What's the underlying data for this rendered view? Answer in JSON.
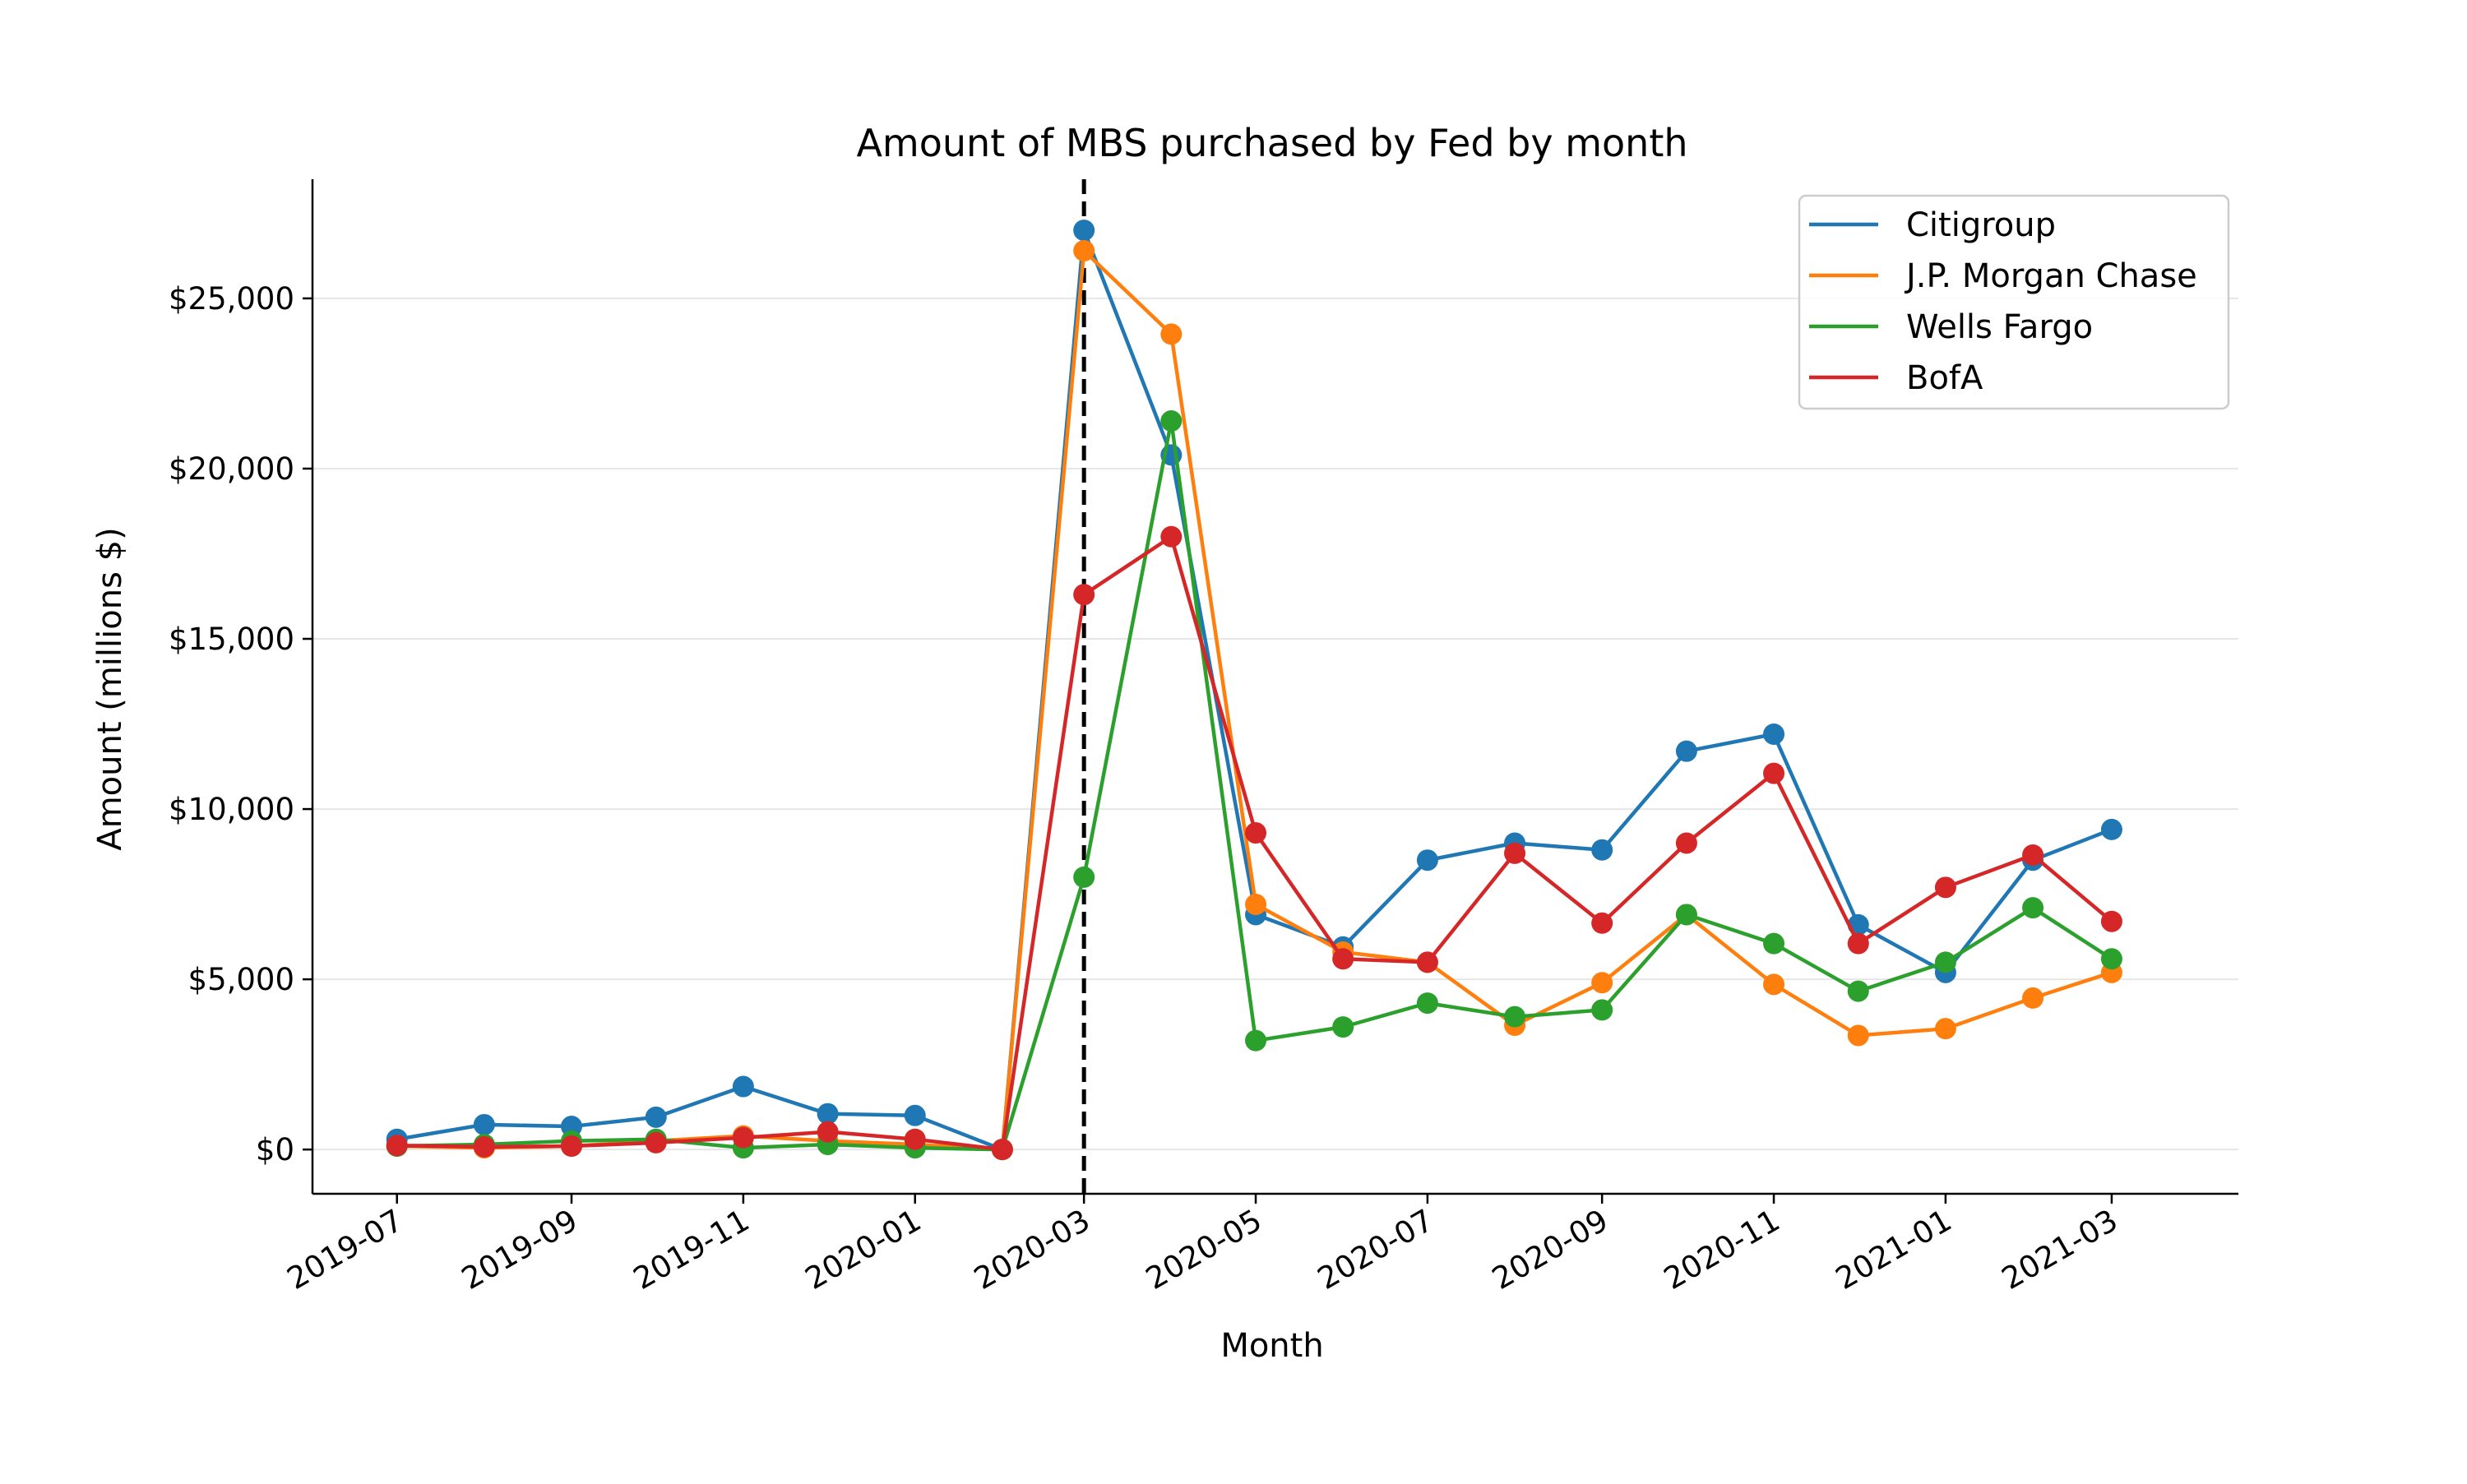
{
  "chart_data": {
    "type": "line",
    "title": "Amount of MBS purchased by Fed by month",
    "xlabel": "Month",
    "ylabel": "Amount (millions $)",
    "x": [
      "2019-07",
      "2019-08",
      "2019-09",
      "2019-10",
      "2019-11",
      "2019-12",
      "2020-01",
      "2020-02",
      "2020-03",
      "2020-04",
      "2020-05",
      "2020-06",
      "2020-07",
      "2020-08",
      "2020-09",
      "2020-10",
      "2020-11",
      "2020-12",
      "2021-01",
      "2021-02",
      "2021-03"
    ],
    "x_ticks": [
      "2019-07",
      "2019-09",
      "2019-11",
      "2020-01",
      "2020-03",
      "2020-05",
      "2020-07",
      "2020-09",
      "2020-11",
      "2021-01",
      "2021-03"
    ],
    "x_range": [
      "2019-06-01",
      "2021-04-15"
    ],
    "ylim": [
      -1300,
      28500
    ],
    "y_ticks": [
      0,
      5000,
      10000,
      15000,
      20000,
      25000
    ],
    "y_tick_labels": [
      "$0",
      "$5,000",
      "$10,000",
      "$15,000",
      "$20,000",
      "$25,000"
    ],
    "grid": "horizontal",
    "legend_position": "top-right",
    "vertical_marker": {
      "x": "2020-03",
      "style": "dashed",
      "color": "#000000"
    },
    "series": [
      {
        "name": "Citigroup",
        "color": "#1f77b4",
        "values": [
          300,
          730,
          680,
          950,
          1850,
          1050,
          1000,
          0,
          27000,
          20400,
          6900,
          5950,
          8500,
          9000,
          8800,
          11700,
          12200,
          6600,
          5200,
          8500,
          9400
        ]
      },
      {
        "name": "J.P. Morgan Chase",
        "color": "#ff7f0e",
        "values": [
          100,
          50,
          100,
          250,
          400,
          250,
          150,
          0,
          26400,
          23950,
          7200,
          5800,
          5500,
          3650,
          4900,
          6900,
          4850,
          3350,
          3550,
          4450,
          5200
        ]
      },
      {
        "name": "Wells Fargo",
        "color": "#2ca02c",
        "values": [
          100,
          150,
          250,
          300,
          50,
          150,
          50,
          0,
          8000,
          21400,
          3200,
          3600,
          4300,
          3900,
          4100,
          6900,
          6050,
          4650,
          5500,
          7100,
          5600
        ]
      },
      {
        "name": "BofA",
        "color": "#d62728",
        "values": [
          120,
          80,
          100,
          200,
          350,
          520,
          300,
          0,
          16300,
          18000,
          9300,
          5600,
          5500,
          8700,
          6650,
          9000,
          11050,
          6050,
          7700,
          8650,
          6700
        ]
      }
    ]
  }
}
